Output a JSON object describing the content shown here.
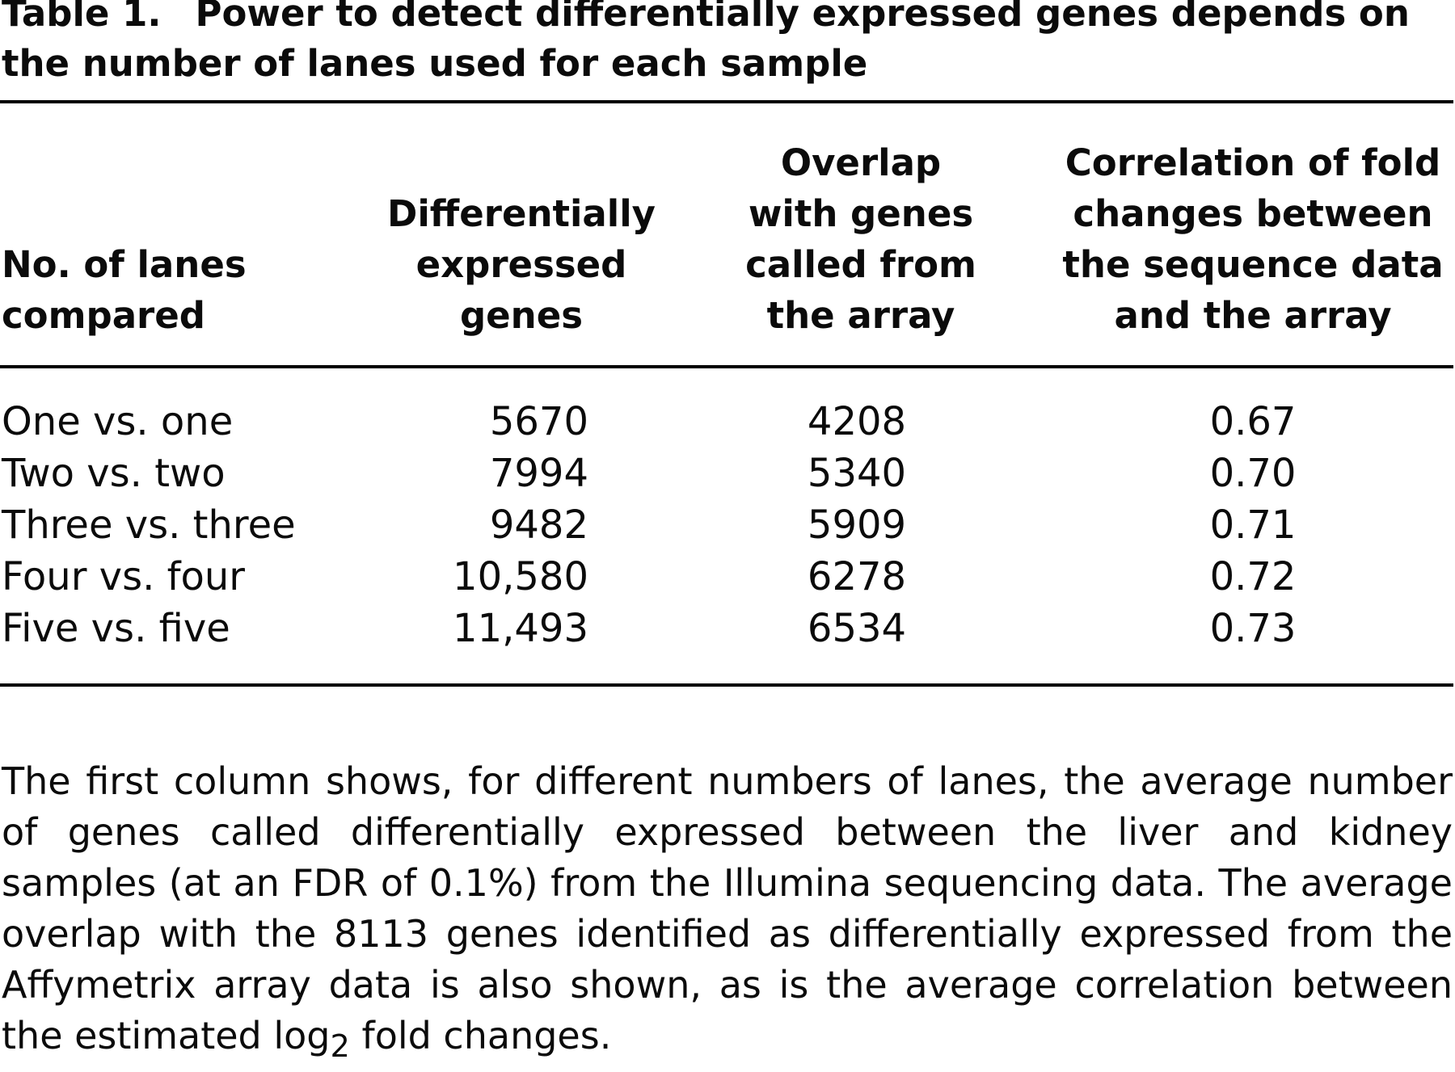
{
  "caption": {
    "label": "Table 1.",
    "title": "Power to detect differentially expressed genes depends on the number of lanes used for each sample"
  },
  "table": {
    "headers": [
      [
        "No. of lanes",
        "compared"
      ],
      [
        "Differentially",
        "expressed",
        "genes"
      ],
      [
        "Overlap",
        "with genes",
        "called from",
        "the array"
      ],
      [
        "Correlation of fold",
        "changes between",
        "the sequence data",
        "and the array"
      ]
    ],
    "rows": [
      [
        "One vs. one",
        "5670",
        "4208",
        "0.67"
      ],
      [
        "Two vs. two",
        "7994",
        "5340",
        "0.70"
      ],
      [
        "Three vs. three",
        "9482",
        "5909",
        "0.71"
      ],
      [
        "Four vs. four",
        "10,580",
        "6278",
        "0.72"
      ],
      [
        "Five vs. five",
        "11,493",
        "6534",
        "0.73"
      ]
    ]
  },
  "footnote": {
    "text_main": "The first column shows, for different numbers of lanes, the average number of genes called differentially expressed between the liver and kidney samples (at an FDR of 0.1%) from the Illumina sequencing data. The average overlap with the 8113 genes identified as differentially expressed from the Affymetrix array data is also shown, as is the average correlation between the estimated log",
    "subscript": "2",
    "text_end": " fold changes."
  }
}
